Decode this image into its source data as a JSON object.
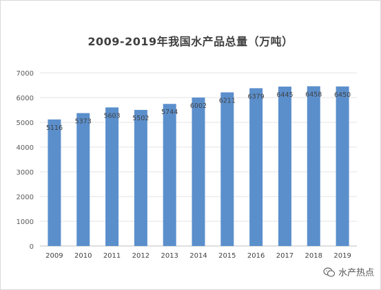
{
  "chart_data": {
    "type": "bar",
    "title": "2009-2019年我国水产品总量（万吨）",
    "categories": [
      "2009",
      "2010",
      "2011",
      "2012",
      "2013",
      "2014",
      "2015",
      "2016",
      "2017",
      "2018",
      "2019"
    ],
    "values": [
      5116,
      5373,
      5603,
      5502,
      5744,
      6002,
      6211,
      6379,
      6445,
      6458,
      6450
    ],
    "ylim": [
      0,
      7000
    ],
    "yticks": [
      0,
      1000,
      2000,
      3000,
      4000,
      5000,
      6000,
      7000
    ],
    "grid": true,
    "legend": "none",
    "bar_color": "#5b8fcc"
  },
  "watermark": {
    "text": "水产热点",
    "icon": "wechat-icon"
  }
}
